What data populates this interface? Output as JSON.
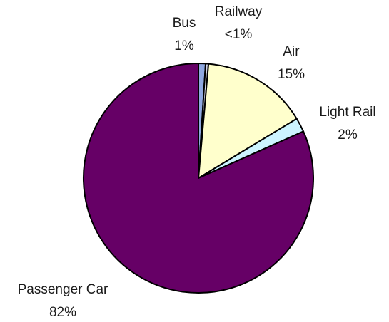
{
  "chart_data": {
    "type": "pie",
    "title": "",
    "slices": [
      {
        "name": "Bus",
        "value_label": "1%",
        "value": 1,
        "color": "#8fa8e0"
      },
      {
        "name": "Railway",
        "value_label": "<1%",
        "value": 0.4,
        "color": "#cfd3e8"
      },
      {
        "name": "Air",
        "value_label": "15%",
        "value": 15,
        "color": "#ffffcc"
      },
      {
        "name": "Light Rail",
        "value_label": "2%",
        "value": 2,
        "color": "#ccf4ff"
      },
      {
        "name": "Passenger Car",
        "value_label": "82%",
        "value": 82,
        "color": "#660066"
      }
    ],
    "legend": "none",
    "outline_color": "#000000"
  }
}
